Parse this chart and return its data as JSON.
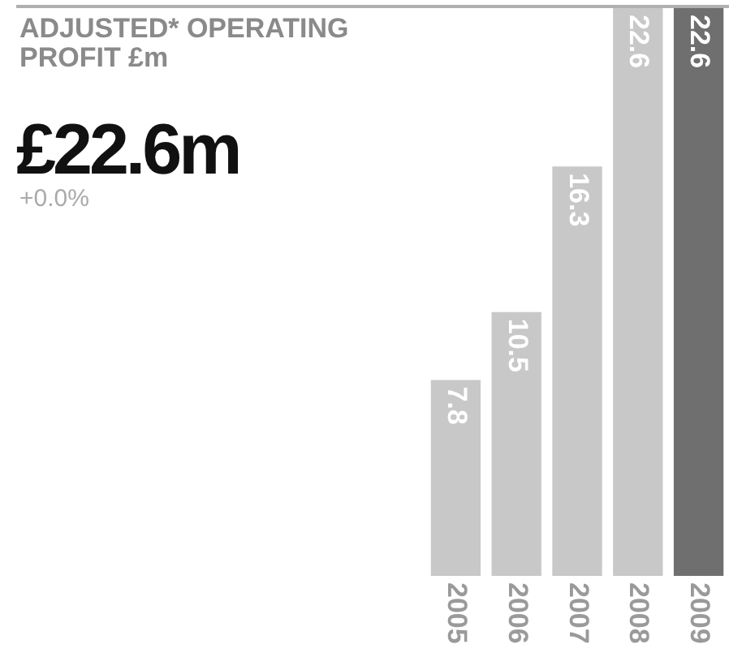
{
  "chart_data": {
    "type": "bar",
    "title": "ADJUSTED* OPERATING PROFIT £m",
    "subtitle": "£22.6m",
    "annotations": [
      "+0.0%"
    ],
    "categories": [
      "2005",
      "2006",
      "2007",
      "2008",
      "2009"
    ],
    "values": [
      7.8,
      10.5,
      16.3,
      22.6,
      22.6
    ],
    "colors": [
      "#c8c8c8",
      "#c8c8c8",
      "#c8c8c8",
      "#c8c8c8",
      "#6f6f6f"
    ],
    "data_labels": true
  }
}
